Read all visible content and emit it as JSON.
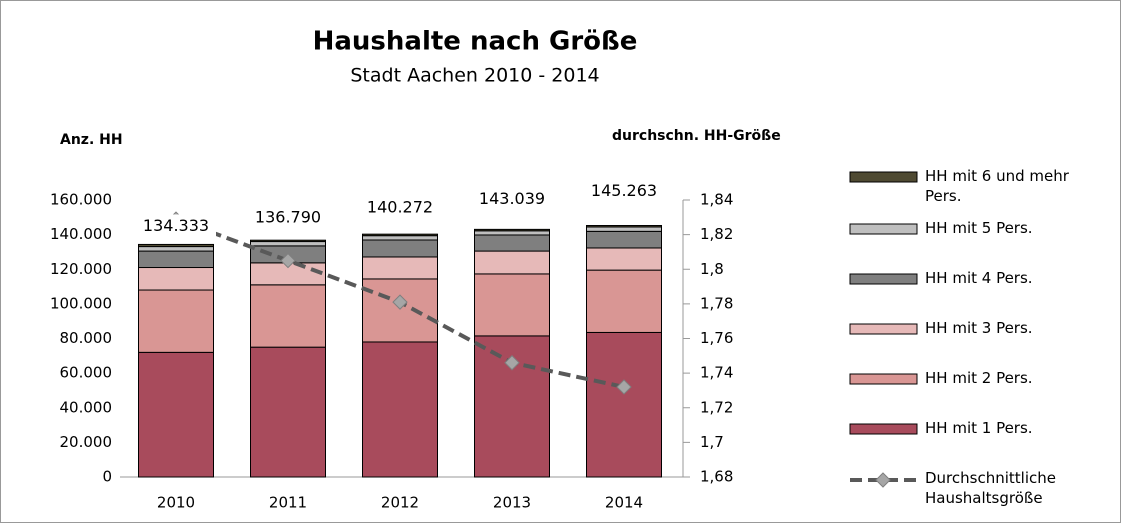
{
  "chart_data": {
    "type": "bar",
    "stacked": true,
    "title": "Haushalte nach Größe",
    "subtitle": "Stadt Aachen 2010 - 2014",
    "y_label": "Anz. HH",
    "y2_label": "durchschn. HH-Größe",
    "categories": [
      "2010",
      "2011",
      "2012",
      "2013",
      "2014"
    ],
    "series": [
      {
        "name": "HH mit 1 Pers.",
        "color": "#a84b5c",
        "values": [
          72000,
          75000,
          78000,
          81500,
          83500
        ]
      },
      {
        "name": "HH mit 2 Pers.",
        "color": "#d99694",
        "values": [
          36000,
          36000,
          36400,
          35800,
          36000
        ]
      },
      {
        "name": "HH mit 3 Pers.",
        "color": "#e6b9b8",
        "values": [
          13000,
          12700,
          12700,
          13200,
          12800
        ]
      },
      {
        "name": "HH mit 4 Pers.",
        "color": "#7f7f7f",
        "values": [
          9500,
          9800,
          9800,
          9300,
          9600
        ]
      },
      {
        "name": "HH mit 5 Pers.",
        "color": "#bfbfbf",
        "values": [
          2600,
          2500,
          2500,
          2400,
          2500
        ]
      },
      {
        "name": "HH mit 6 und mehr Pers.",
        "color": "#4f4a32",
        "values": [
          1233,
          790,
          872,
          839,
          863
        ]
      },
      {
        "name": "Durchschnittliche Haushaltsgröße",
        "type": "line",
        "axis": "y2",
        "color": "#595959",
        "marker_color": "#a6a6a6",
        "values": [
          1.829,
          1.805,
          1.781,
          1.746,
          1.732
        ]
      }
    ],
    "totals": {
      "values": [
        134333,
        136790,
        140272,
        143039,
        145263
      ],
      "value_labels": [
        "134.333",
        "136.790",
        "140.272",
        "143.039",
        "145.263"
      ]
    },
    "ylim": [
      0,
      160000
    ],
    "yticks": [
      0,
      {
        "value": 20000,
        "label": "20.000"
      },
      {
        "value": 40000,
        "label": "40.000"
      },
      {
        "value": 60000,
        "label": "60.000"
      },
      {
        "value": 80000,
        "label": "80.000"
      },
      {
        "value": 100000,
        "label": "100.000"
      },
      {
        "value": 120000,
        "label": "120.000"
      },
      {
        "value": 140000,
        "label": "140.000"
      },
      {
        "value": 160000,
        "label": "160.000"
      }
    ],
    "y2lim": [
      1.68,
      1.84
    ],
    "y2ticks": [
      {
        "value": 1.68,
        "label": "1,68"
      },
      {
        "value": 1.7,
        "label": "1,7"
      },
      {
        "value": 1.72,
        "label": "1,72"
      },
      {
        "value": 1.74,
        "label": "1,74"
      },
      {
        "value": 1.76,
        "label": "1,76"
      },
      {
        "value": 1.78,
        "label": "1,78"
      },
      {
        "value": 1.8,
        "label": "1,8"
      },
      {
        "value": 1.82,
        "label": "1,82"
      },
      {
        "value": 1.84,
        "label": "1,84"
      }
    ],
    "legend": "right"
  }
}
